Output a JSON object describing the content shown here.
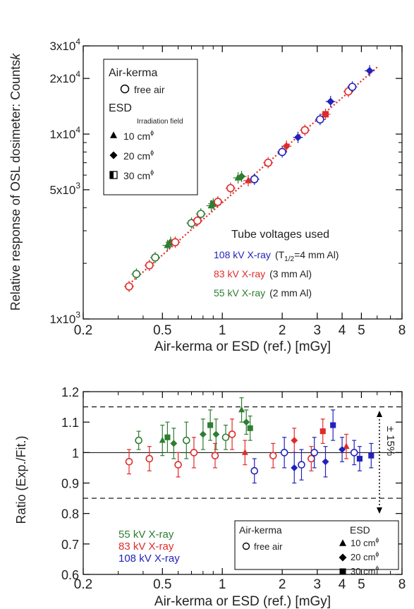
{
  "top": {
    "ylabel": "Relative response of OSL dosimeter: Counts",
    "ylabel_suffix": "k",
    "xlabel": "Air-kerma or ESD (ref.) [mGy]",
    "xticks": [
      {
        "v": 0.2,
        "label": "0.2"
      },
      {
        "v": 0.5,
        "label": "0.5"
      },
      {
        "v": 1,
        "label": "1"
      },
      {
        "v": 2,
        "label": "2"
      },
      {
        "v": 3,
        "label": "3"
      },
      {
        "v": 4,
        "label": "4"
      },
      {
        "v": 5,
        "label": "5"
      },
      {
        "v": 8,
        "label": "8"
      }
    ],
    "yticks": [
      {
        "v": 1000,
        "base": "1x10",
        "exp": "3"
      },
      {
        "v": 5000,
        "base": "5x10",
        "exp": "3"
      },
      {
        "v": 10000,
        "base": "1x10",
        "exp": "4"
      },
      {
        "v": 20000,
        "base": "2x10",
        "exp": "4"
      },
      {
        "v": 30000,
        "base": "3x10",
        "exp": "4"
      }
    ],
    "legend": {
      "air_kerma_title": "Air-kerma",
      "free_air": "free air",
      "esd_title": "ESD",
      "field_title": "Irradiation field",
      "fields": [
        {
          "marker": "triangle",
          "label": "10 cm",
          "sup": "ϕ"
        },
        {
          "marker": "diamond",
          "label": "20 cm",
          "sup": "ϕ"
        },
        {
          "marker": "half-square",
          "label": "30 cm",
          "sup": "ϕ"
        }
      ]
    },
    "tube_title": "Tube voltages used",
    "tubes": [
      {
        "label": "108 kV X-ray",
        "filter_pre": "(T",
        "filter_sub": "1/2",
        "filter_post": "=4 mm Al)",
        "color": "#2222bb"
      },
      {
        "label": "83 kV X-ray",
        "filter_pre": "(3 mm Al)",
        "filter_sub": "",
        "filter_post": "",
        "color": "#e02a2a"
      },
      {
        "label": "55 kV X-ray",
        "filter_pre": "(2 mm Al)",
        "filter_sub": "",
        "filter_post": "",
        "color": "#2e7d32"
      }
    ]
  },
  "bottom": {
    "ylabel": "Ratio (Exp./Fit.)",
    "xlabel": "Air-kerma or ESD (ref.) [mGy]",
    "yticks": [
      "0.6",
      "0.7",
      "0.8",
      "0.9",
      "1",
      "1.1",
      "1.2"
    ],
    "band_label": "± 15%",
    "series_labels": [
      {
        "label": "55 kV X-ray",
        "color": "#2e7d32"
      },
      {
        "label": "83 kV X-ray",
        "color": "#e02a2a"
      },
      {
        "label": "108 kV X-ray",
        "color": "#2222bb"
      }
    ],
    "legend": {
      "air_kerma_title": "Air-kerma",
      "free_air": "free air",
      "esd_title": "ESD",
      "fields": [
        {
          "marker": "triangle",
          "label": "10 cm",
          "sup": "ϕ"
        },
        {
          "marker": "diamond",
          "label": "20 cm",
          "sup": "ϕ"
        },
        {
          "marker": "square",
          "label": "30 cm",
          "sup": "ϕ"
        }
      ]
    }
  },
  "chart_data": [
    {
      "type": "scatter",
      "xscale": "log",
      "yscale": "log",
      "xlim": [
        0.2,
        8
      ],
      "ylim": [
        1000,
        30000
      ],
      "grid": false,
      "legend_position": "top-left",
      "fit_line": {
        "x": [
          0.33,
          6.0
        ],
        "y": [
          1500,
          23000
        ],
        "color": "#e02a2a",
        "style": "dotted"
      },
      "series": [
        {
          "name": "55 kV X-ray",
          "color": "#2e7d32",
          "points": [
            {
              "x": 0.37,
              "y": 1750,
              "m": "circle"
            },
            {
              "x": 0.46,
              "y": 2150,
              "m": "circle"
            },
            {
              "x": 0.53,
              "y": 2500,
              "m": "triangle"
            },
            {
              "x": 0.55,
              "y": 2600,
              "m": "diamond"
            },
            {
              "x": 0.7,
              "y": 3300,
              "m": "circle"
            },
            {
              "x": 0.78,
              "y": 3700,
              "m": "circle"
            },
            {
              "x": 0.88,
              "y": 4100,
              "m": "triangle"
            },
            {
              "x": 0.9,
              "y": 4200,
              "m": "square"
            },
            {
              "x": 1.2,
              "y": 5800,
              "m": "triangle"
            },
            {
              "x": 1.25,
              "y": 5900,
              "m": "diamond"
            }
          ]
        },
        {
          "name": "83 kV X-ray",
          "color": "#e02a2a",
          "points": [
            {
              "x": 0.34,
              "y": 1500,
              "m": "circle"
            },
            {
              "x": 0.43,
              "y": 1950,
              "m": "circle"
            },
            {
              "x": 0.58,
              "y": 2600,
              "m": "circle"
            },
            {
              "x": 0.75,
              "y": 3400,
              "m": "circle"
            },
            {
              "x": 0.95,
              "y": 4300,
              "m": "circle"
            },
            {
              "x": 1.1,
              "y": 5100,
              "m": "circle"
            },
            {
              "x": 1.35,
              "y": 5600,
              "m": "triangle"
            },
            {
              "x": 1.7,
              "y": 7000,
              "m": "circle"
            },
            {
              "x": 2.1,
              "y": 8600,
              "m": "diamond"
            },
            {
              "x": 2.6,
              "y": 10500,
              "m": "circle"
            },
            {
              "x": 3.3,
              "y": 12800,
              "m": "square"
            },
            {
              "x": 4.3,
              "y": 17000,
              "m": "circle"
            }
          ]
        },
        {
          "name": "108 kV X-ray",
          "color": "#2222bb",
          "points": [
            {
              "x": 1.45,
              "y": 5700,
              "m": "circle"
            },
            {
              "x": 2.0,
              "y": 8000,
              "m": "circle"
            },
            {
              "x": 2.4,
              "y": 9600,
              "m": "diamond"
            },
            {
              "x": 3.1,
              "y": 12000,
              "m": "circle"
            },
            {
              "x": 3.5,
              "y": 15000,
              "m": "diamond"
            },
            {
              "x": 4.5,
              "y": 18000,
              "m": "circle"
            },
            {
              "x": 5.5,
              "y": 22000,
              "m": "diamond"
            }
          ]
        }
      ]
    },
    {
      "type": "scatter",
      "xscale": "log",
      "xlim": [
        0.2,
        8
      ],
      "ylim": [
        0.6,
        1.2
      ],
      "grid": false,
      "reference_lines": [
        {
          "y": 1.0,
          "style": "solid"
        },
        {
          "y": 1.15,
          "style": "dashed"
        },
        {
          "y": 0.85,
          "style": "dashed"
        }
      ],
      "series": [
        {
          "name": "55 kV X-ray",
          "color": "#2e7d32",
          "points": [
            {
              "x": 0.38,
              "y": 1.04,
              "e": 0.03,
              "m": "circle"
            },
            {
              "x": 0.5,
              "y": 1.04,
              "e": 0.05,
              "m": "triangle"
            },
            {
              "x": 0.53,
              "y": 1.05,
              "e": 0.05,
              "m": "square"
            },
            {
              "x": 0.57,
              "y": 1.03,
              "e": 0.05,
              "m": "diamond"
            },
            {
              "x": 0.66,
              "y": 1.04,
              "e": 0.06,
              "m": "circle"
            },
            {
              "x": 0.8,
              "y": 1.06,
              "e": 0.05,
              "m": "diamond"
            },
            {
              "x": 0.87,
              "y": 1.09,
              "e": 0.05,
              "m": "square"
            },
            {
              "x": 0.93,
              "y": 1.06,
              "e": 0.05,
              "m": "diamond"
            },
            {
              "x": 1.04,
              "y": 1.05,
              "e": 0.04,
              "m": "circle"
            },
            {
              "x": 1.25,
              "y": 1.14,
              "e": 0.04,
              "m": "triangle"
            },
            {
              "x": 1.32,
              "y": 1.1,
              "e": 0.04,
              "m": "diamond"
            },
            {
              "x": 1.38,
              "y": 1.08,
              "e": 0.04,
              "m": "square"
            }
          ]
        },
        {
          "name": "83 kV X-ray",
          "color": "#e02a2a",
          "points": [
            {
              "x": 0.34,
              "y": 0.97,
              "e": 0.04,
              "m": "circle"
            },
            {
              "x": 0.43,
              "y": 0.98,
              "e": 0.04,
              "m": "circle"
            },
            {
              "x": 0.6,
              "y": 0.96,
              "e": 0.04,
              "m": "circle"
            },
            {
              "x": 0.72,
              "y": 1.0,
              "e": 0.05,
              "m": "circle"
            },
            {
              "x": 0.92,
              "y": 0.99,
              "e": 0.04,
              "m": "circle"
            },
            {
              "x": 1.12,
              "y": 1.06,
              "e": 0.05,
              "m": "circle"
            },
            {
              "x": 1.3,
              "y": 1.0,
              "e": 0.04,
              "m": "triangle"
            },
            {
              "x": 1.8,
              "y": 0.99,
              "e": 0.04,
              "m": "circle"
            },
            {
              "x": 2.3,
              "y": 1.04,
              "e": 0.04,
              "m": "diamond"
            },
            {
              "x": 2.8,
              "y": 0.98,
              "e": 0.04,
              "m": "circle"
            },
            {
              "x": 3.2,
              "y": 1.07,
              "e": 0.04,
              "m": "square"
            },
            {
              "x": 4.2,
              "y": 1.02,
              "e": 0.04,
              "m": "triangle"
            }
          ]
        },
        {
          "name": "108 kV X-ray",
          "color": "#2222bb",
          "points": [
            {
              "x": 1.45,
              "y": 0.94,
              "e": 0.04,
              "m": "circle"
            },
            {
              "x": 2.05,
              "y": 1.0,
              "e": 0.05,
              "m": "circle"
            },
            {
              "x": 2.3,
              "y": 0.95,
              "e": 0.05,
              "m": "diamond"
            },
            {
              "x": 2.5,
              "y": 0.96,
              "e": 0.05,
              "m": "circle"
            },
            {
              "x": 2.9,
              "y": 1.0,
              "e": 0.05,
              "m": "circle"
            },
            {
              "x": 3.3,
              "y": 0.97,
              "e": 0.05,
              "m": "diamond"
            },
            {
              "x": 3.6,
              "y": 1.09,
              "e": 0.05,
              "m": "square"
            },
            {
              "x": 4.0,
              "y": 1.01,
              "e": 0.04,
              "m": "diamond"
            },
            {
              "x": 4.6,
              "y": 1.0,
              "e": 0.04,
              "m": "circle"
            },
            {
              "x": 4.9,
              "y": 0.98,
              "e": 0.04,
              "m": "square"
            },
            {
              "x": 5.6,
              "y": 0.99,
              "e": 0.04,
              "m": "square"
            }
          ]
        }
      ]
    }
  ]
}
